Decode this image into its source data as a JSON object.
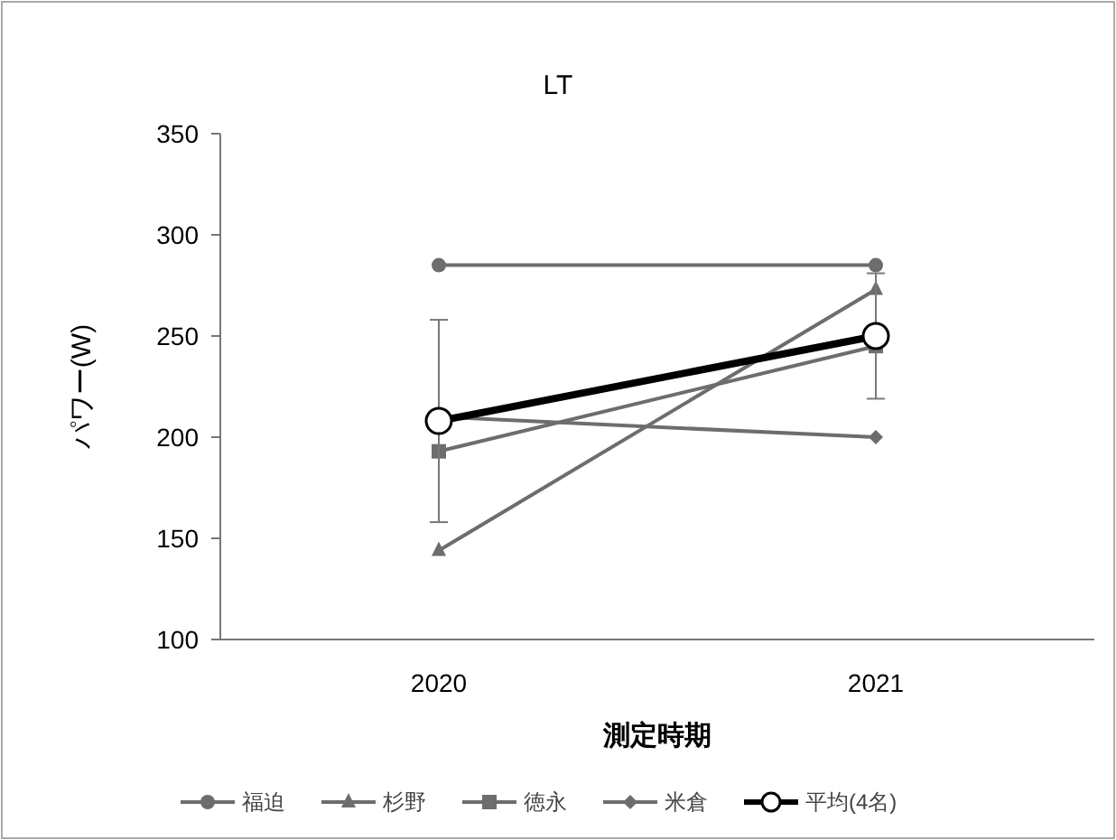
{
  "chart_data": {
    "type": "line",
    "title": "LT",
    "xlabel": "測定時期",
    "ylabel": "パワー(W)",
    "categories": [
      "2020",
      "2021"
    ],
    "ylim": [
      100,
      350
    ],
    "yticks": [
      100,
      150,
      200,
      250,
      300,
      350
    ],
    "grid": false,
    "legend": "bottom",
    "series": [
      {
        "name": "福迫",
        "color": "#6d6d6d",
        "marker": "circle",
        "values": [
          285,
          285
        ]
      },
      {
        "name": "杉野",
        "color": "#6d6d6d",
        "marker": "triangle",
        "values": [
          144,
          273
        ]
      },
      {
        "name": "徳永",
        "color": "#6d6d6d",
        "marker": "square",
        "values": [
          193,
          245
        ]
      },
      {
        "name": "米倉",
        "color": "#6d6d6d",
        "marker": "diamond",
        "values": [
          210,
          200
        ]
      },
      {
        "name": "平均(4名)",
        "color": "#000000",
        "marker": "circle",
        "values": [
          208,
          250
        ],
        "errors": [
          50,
          31
        ]
      }
    ]
  }
}
